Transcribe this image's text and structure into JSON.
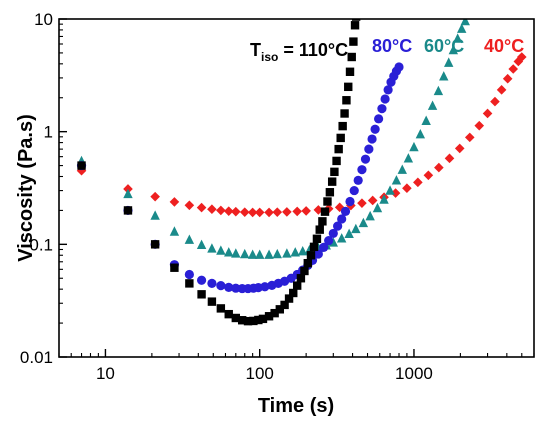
{
  "chart_data": {
    "type": "scatter",
    "xlabel": "Time (s)",
    "ylabel": "Viscosity (Pa.s)",
    "xscale": "log",
    "yscale": "log",
    "xlim": [
      5,
      6000
    ],
    "ylim": [
      0.01,
      10
    ],
    "x_ticks": [
      10,
      100,
      1000
    ],
    "x_tick_labels": [
      "10",
      "100",
      "1000"
    ],
    "y_ticks": [
      0.01,
      0.1,
      1,
      10
    ],
    "y_tick_labels": [
      "0.01",
      "0.1",
      "1",
      "10"
    ],
    "grid": false,
    "legend": "series labels at top-right, drawn above curve ends",
    "series": [
      {
        "name": "T_iso = 110°C",
        "label_main": "T",
        "label_sub": "iso",
        "label_rest": " = 110°C",
        "color": "#000000",
        "marker": "square",
        "points": [
          [
            7,
            0.5
          ],
          [
            14,
            0.2
          ],
          [
            21,
            0.1
          ],
          [
            28,
            0.062
          ],
          [
            35,
            0.045
          ],
          [
            42,
            0.036
          ],
          [
            49,
            0.031
          ],
          [
            56,
            0.027
          ],
          [
            63,
            0.024
          ],
          [
            70,
            0.0222
          ],
          [
            77,
            0.0212
          ],
          [
            84,
            0.0208
          ],
          [
            91,
            0.0209
          ],
          [
            98,
            0.0213
          ],
          [
            105,
            0.0218
          ],
          [
            115,
            0.023
          ],
          [
            125,
            0.0245
          ],
          [
            135,
            0.0265
          ],
          [
            145,
            0.029
          ],
          [
            155,
            0.033
          ],
          [
            165,
            0.037
          ],
          [
            175,
            0.043
          ],
          [
            185,
            0.05
          ],
          [
            195,
            0.058
          ],
          [
            205,
            0.068
          ],
          [
            215,
            0.08
          ],
          [
            225,
            0.095
          ],
          [
            235,
            0.112
          ],
          [
            245,
            0.135
          ],
          [
            255,
            0.16
          ],
          [
            265,
            0.195
          ],
          [
            275,
            0.24
          ],
          [
            285,
            0.29
          ],
          [
            295,
            0.36
          ],
          [
            305,
            0.44
          ],
          [
            315,
            0.55
          ],
          [
            325,
            0.7
          ],
          [
            335,
            0.88
          ],
          [
            345,
            1.12
          ],
          [
            355,
            1.45
          ],
          [
            365,
            1.9
          ],
          [
            375,
            2.5
          ],
          [
            385,
            3.4
          ],
          [
            395,
            4.6
          ],
          [
            405,
            6.3
          ],
          [
            415,
            8.8
          ],
          [
            422,
            10.5
          ]
        ]
      },
      {
        "name": "80°C",
        "color": "#2a1fd6",
        "marker": "circle",
        "points": [
          [
            7,
            0.5
          ],
          [
            14,
            0.2
          ],
          [
            21,
            0.1
          ],
          [
            28,
            0.066
          ],
          [
            35,
            0.054
          ],
          [
            42,
            0.048
          ],
          [
            49,
            0.045
          ],
          [
            56,
            0.043
          ],
          [
            63,
            0.0415
          ],
          [
            70,
            0.0408
          ],
          [
            77,
            0.0405
          ],
          [
            84,
            0.0405
          ],
          [
            91,
            0.0408
          ],
          [
            98,
            0.0413
          ],
          [
            108,
            0.042
          ],
          [
            120,
            0.0432
          ],
          [
            132,
            0.045
          ],
          [
            145,
            0.047
          ],
          [
            160,
            0.05
          ],
          [
            175,
            0.054
          ],
          [
            190,
            0.059
          ],
          [
            205,
            0.065
          ],
          [
            220,
            0.072
          ],
          [
            240,
            0.082
          ],
          [
            260,
            0.094
          ],
          [
            280,
            0.108
          ],
          [
            300,
            0.125
          ],
          [
            320,
            0.145
          ],
          [
            340,
            0.168
          ],
          [
            360,
            0.196
          ],
          [
            385,
            0.24
          ],
          [
            410,
            0.3
          ],
          [
            435,
            0.37
          ],
          [
            460,
            0.46
          ],
          [
            485,
            0.57
          ],
          [
            510,
            0.7
          ],
          [
            535,
            0.86
          ],
          [
            560,
            1.05
          ],
          [
            590,
            1.3
          ],
          [
            620,
            1.6
          ],
          [
            650,
            1.95
          ],
          [
            680,
            2.35
          ],
          [
            710,
            2.75
          ],
          [
            740,
            3.1
          ],
          [
            770,
            3.45
          ],
          [
            800,
            3.75
          ]
        ]
      },
      {
        "name": "60°C",
        "color": "#1a8a8a",
        "marker": "triangle",
        "points": [
          [
            7,
            0.55
          ],
          [
            14,
            0.28
          ],
          [
            21,
            0.18
          ],
          [
            28,
            0.13
          ],
          [
            35,
            0.11
          ],
          [
            42,
            0.099
          ],
          [
            49,
            0.092
          ],
          [
            56,
            0.088
          ],
          [
            63,
            0.085
          ],
          [
            70,
            0.083
          ],
          [
            80,
            0.082
          ],
          [
            90,
            0.081
          ],
          [
            100,
            0.081
          ],
          [
            115,
            0.081
          ],
          [
            130,
            0.082
          ],
          [
            150,
            0.083
          ],
          [
            170,
            0.085
          ],
          [
            190,
            0.087
          ],
          [
            210,
            0.089
          ],
          [
            240,
            0.093
          ],
          [
            270,
            0.098
          ],
          [
            300,
            0.104
          ],
          [
            340,
            0.113
          ],
          [
            380,
            0.124
          ],
          [
            420,
            0.137
          ],
          [
            470,
            0.155
          ],
          [
            520,
            0.178
          ],
          [
            580,
            0.21
          ],
          [
            640,
            0.25
          ],
          [
            700,
            0.3
          ],
          [
            770,
            0.37
          ],
          [
            840,
            0.46
          ],
          [
            920,
            0.58
          ],
          [
            1000,
            0.73
          ],
          [
            1100,
            0.95
          ],
          [
            1200,
            1.25
          ],
          [
            1320,
            1.7
          ],
          [
            1440,
            2.3
          ],
          [
            1560,
            3.1
          ],
          [
            1680,
            4.1
          ],
          [
            1800,
            5.3
          ],
          [
            1920,
            6.7
          ],
          [
            2040,
            8.2
          ],
          [
            2150,
            9.6
          ],
          [
            2250,
            10.8
          ]
        ]
      },
      {
        "name": "40°C",
        "color": "#ee2020",
        "marker": "diamond",
        "points": [
          [
            7,
            0.45
          ],
          [
            14,
            0.31
          ],
          [
            21,
            0.265
          ],
          [
            28,
            0.238
          ],
          [
            35,
            0.222
          ],
          [
            42,
            0.212
          ],
          [
            49,
            0.205
          ],
          [
            56,
            0.2
          ],
          [
            63,
            0.197
          ],
          [
            70,
            0.195
          ],
          [
            80,
            0.193
          ],
          [
            90,
            0.192
          ],
          [
            100,
            0.192
          ],
          [
            115,
            0.192
          ],
          [
            130,
            0.193
          ],
          [
            150,
            0.194
          ],
          [
            175,
            0.196
          ],
          [
            200,
            0.198
          ],
          [
            240,
            0.202
          ],
          [
            280,
            0.207
          ],
          [
            330,
            0.213
          ],
          [
            390,
            0.221
          ],
          [
            460,
            0.232
          ],
          [
            540,
            0.245
          ],
          [
            640,
            0.262
          ],
          [
            760,
            0.285
          ],
          [
            900,
            0.315
          ],
          [
            1060,
            0.355
          ],
          [
            1240,
            0.41
          ],
          [
            1450,
            0.48
          ],
          [
            1700,
            0.58
          ],
          [
            1980,
            0.71
          ],
          [
            2300,
            0.89
          ],
          [
            2650,
            1.13
          ],
          [
            3000,
            1.45
          ],
          [
            3350,
            1.85
          ],
          [
            3700,
            2.35
          ],
          [
            4050,
            2.95
          ],
          [
            4400,
            3.6
          ],
          [
            4750,
            4.2
          ],
          [
            5000,
            4.6
          ]
        ]
      }
    ]
  }
}
